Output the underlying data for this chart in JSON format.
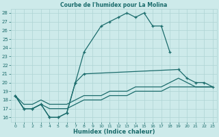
{
  "title": "Courbe de l'humidex pour La Molina",
  "xlabel": "Humidex (Indice chaleur)",
  "bg_color": "#cdeaea",
  "grid_color": "#aed4d4",
  "line_color": "#1a6b6b",
  "ylim": [
    15.5,
    28.5
  ],
  "xlim": [
    -0.5,
    23.5
  ],
  "yticks": [
    16,
    17,
    18,
    19,
    20,
    21,
    22,
    23,
    24,
    25,
    26,
    27,
    28
  ],
  "xticks": [
    0,
    1,
    2,
    3,
    4,
    5,
    6,
    7,
    8,
    9,
    10,
    11,
    12,
    13,
    14,
    15,
    16,
    17,
    18,
    19,
    20,
    21,
    22,
    23
  ],
  "line1_x": [
    0,
    1,
    2,
    3,
    4,
    5,
    6,
    7,
    8,
    10,
    11,
    12,
    13,
    14,
    15,
    16,
    17,
    18
  ],
  "line1_y": [
    18.5,
    17.0,
    17.0,
    17.5,
    16.0,
    16.0,
    16.5,
    20.0,
    23.5,
    26.5,
    27.0,
    27.5,
    28.0,
    27.5,
    28.0,
    26.5,
    26.5,
    23.5
  ],
  "line2_x": [
    0,
    1,
    2,
    3,
    4,
    5,
    6,
    7,
    8,
    19,
    20,
    21,
    22,
    23
  ],
  "line2_y": [
    18.5,
    17.0,
    17.0,
    17.5,
    16.0,
    16.0,
    16.5,
    20.0,
    21.0,
    21.5,
    20.5,
    20.0,
    20.0,
    19.5
  ],
  "line3_x": [
    0,
    1,
    2,
    3,
    4,
    5,
    6,
    7,
    8,
    9,
    10,
    11,
    12,
    13,
    14,
    15,
    16,
    17,
    18,
    19,
    20,
    21,
    22,
    23
  ],
  "line3_y": [
    18.5,
    17.5,
    17.5,
    18.0,
    17.5,
    17.5,
    17.5,
    18.0,
    18.5,
    18.5,
    18.5,
    19.0,
    19.0,
    19.0,
    19.5,
    19.5,
    19.5,
    19.5,
    20.0,
    20.5,
    20.0,
    19.5,
    19.5,
    19.5
  ],
  "line4_x": [
    0,
    1,
    2,
    3,
    4,
    5,
    6,
    7,
    8,
    9,
    10,
    11,
    12,
    13,
    14,
    15,
    16,
    17,
    18,
    19,
    20,
    21,
    22,
    23
  ],
  "line4_y": [
    18.5,
    17.0,
    17.0,
    17.5,
    17.0,
    17.0,
    17.0,
    17.5,
    18.0,
    18.0,
    18.0,
    18.5,
    18.5,
    18.5,
    19.0,
    19.0,
    19.0,
    19.0,
    19.5,
    19.5,
    19.5,
    19.5,
    19.5,
    19.5
  ]
}
